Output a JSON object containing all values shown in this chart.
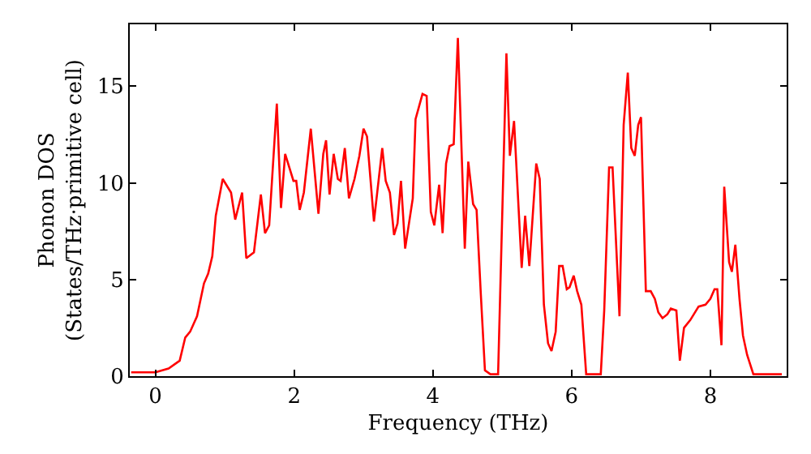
{
  "chart_data": {
    "type": "line",
    "xlabel": "Frequency (THz)",
    "ylabel": "Phonon DOS\n(States/THz·primitive cell)",
    "xlim": [
      -0.37,
      9.1
    ],
    "ylim": [
      0,
      18.2
    ],
    "xticks": [
      0,
      2,
      4,
      6,
      8
    ],
    "yticks": [
      0,
      5,
      10,
      15
    ],
    "grid": false,
    "marker": "none",
    "line_style": "solid",
    "x": [
      -0.35,
      0,
      0.19,
      0.35,
      0.43,
      0.5,
      0.6,
      0.7,
      0.76,
      0.82,
      0.87,
      0.97,
      1.09,
      1.15,
      1.25,
      1.31,
      1.42,
      1.52,
      1.58,
      1.64,
      1.75,
      1.81,
      1.87,
      1.99,
      2.03,
      2.08,
      2.14,
      2.24,
      2.35,
      2.42,
      2.46,
      2.51,
      2.57,
      2.63,
      2.67,
      2.73,
      2.79,
      2.87,
      2.94,
      3.0,
      3.05,
      3.15,
      3.27,
      3.32,
      3.38,
      3.44,
      3.49,
      3.54,
      3.6,
      3.71,
      3.75,
      3.85,
      3.91,
      3.97,
      4.02,
      4.09,
      4.14,
      4.19,
      4.24,
      4.3,
      4.36,
      4.46,
      4.51,
      4.58,
      4.63,
      4.69,
      4.75,
      4.83,
      4.94,
      5.06,
      5.11,
      5.17,
      5.28,
      5.33,
      5.39,
      5.49,
      5.54,
      5.6,
      5.66,
      5.71,
      5.77,
      5.82,
      5.87,
      5.93,
      5.97,
      6.03,
      6.08,
      6.14,
      6.21,
      6.42,
      6.47,
      6.54,
      6.59,
      6.69,
      6.75,
      6.81,
      6.86,
      6.91,
      6.96,
      7.0,
      7.07,
      7.14,
      7.2,
      7.25,
      7.31,
      7.38,
      7.43,
      7.51,
      7.56,
      7.62,
      7.71,
      7.83,
      7.93,
      8.0,
      8.06,
      8.1,
      8.16,
      8.2,
      8.27,
      8.31,
      8.36,
      8.42,
      8.47,
      8.53,
      8.62,
      9.03
    ],
    "series": [
      {
        "color": "#ff0000",
        "values": [
          0.2,
          0.2,
          0.4,
          0.8,
          2.0,
          2.3,
          3.1,
          4.8,
          5.3,
          6.2,
          8.3,
          10.2,
          9.5,
          8.1,
          9.5,
          6.1,
          6.4,
          9.4,
          7.4,
          7.8,
          14.1,
          8.7,
          11.5,
          10.1,
          10.1,
          8.6,
          9.5,
          12.8,
          8.4,
          11.5,
          12.2,
          9.4,
          11.5,
          10.2,
          10.1,
          11.8,
          9.2,
          10.2,
          11.4,
          12.8,
          12.4,
          8.0,
          11.8,
          10.1,
          9.5,
          7.3,
          7.9,
          10.1,
          6.6,
          9.2,
          13.3,
          14.6,
          14.5,
          8.5,
          7.8,
          9.9,
          7.4,
          11.0,
          11.9,
          12.0,
          17.5,
          6.6,
          11.1,
          8.9,
          8.6,
          4.3,
          0.3,
          0.1,
          0.1,
          16.7,
          11.4,
          13.2,
          5.6,
          8.3,
          5.7,
          11.0,
          10.2,
          3.7,
          1.7,
          1.3,
          2.3,
          5.7,
          5.7,
          4.5,
          4.6,
          5.2,
          4.4,
          3.7,
          0.1,
          0.1,
          3.4,
          10.8,
          10.8,
          3.1,
          13.0,
          15.7,
          11.8,
          11.4,
          13.0,
          13.4,
          4.4,
          4.4,
          4.0,
          3.3,
          3.0,
          3.2,
          3.5,
          3.4,
          0.8,
          2.5,
          2.9,
          3.6,
          3.7,
          4.0,
          4.5,
          4.5,
          1.6,
          9.8,
          5.9,
          5.4,
          6.8,
          4.0,
          2.1,
          1.1,
          0.1,
          0.1
        ]
      }
    ]
  }
}
